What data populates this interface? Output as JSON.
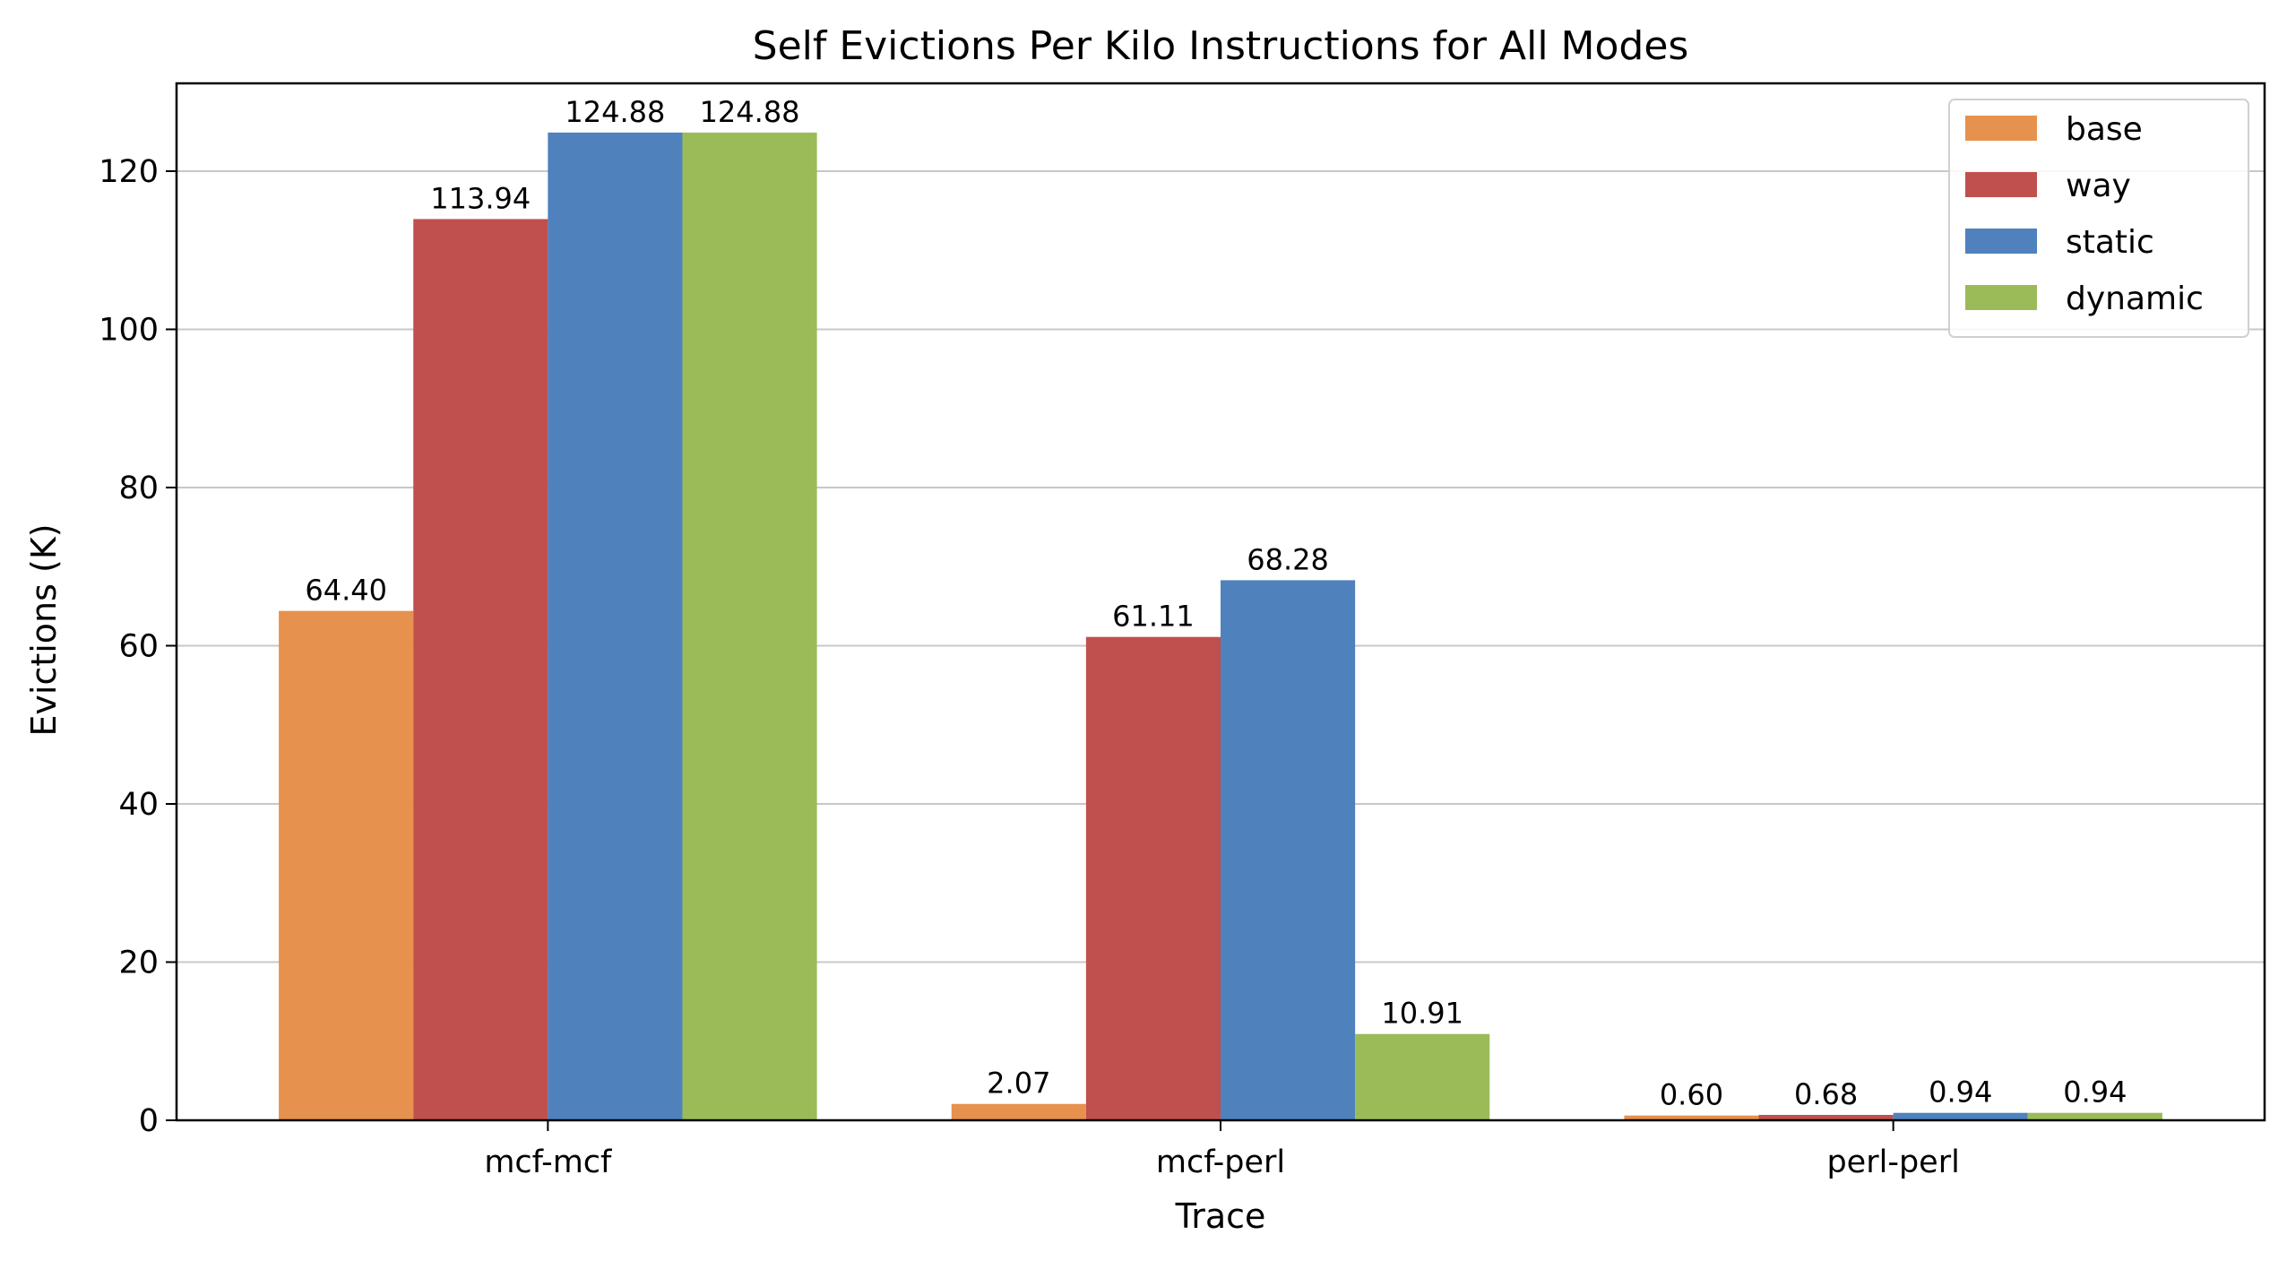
{
  "chart_data": {
    "type": "bar",
    "title": "Self Evictions Per Kilo Instructions for All Modes",
    "xlabel": "Trace",
    "ylabel": "Evictions (K)",
    "categories": [
      "mcf-mcf",
      "mcf-perl",
      "perl-perl"
    ],
    "series": [
      {
        "name": "base",
        "color": "#E6914D",
        "values": [
          64.4,
          2.07,
          0.6
        ],
        "labels": [
          "64.40",
          "2.07",
          "0.60"
        ]
      },
      {
        "name": "way",
        "color": "#C0504D",
        "values": [
          113.94,
          61.11,
          0.68
        ],
        "labels": [
          "113.94",
          "61.11",
          "0.68"
        ]
      },
      {
        "name": "static",
        "color": "#4F81BD",
        "values": [
          124.88,
          68.28,
          0.94
        ],
        "labels": [
          "124.88",
          "68.28",
          "0.94"
        ]
      },
      {
        "name": "dynamic",
        "color": "#9BBB59",
        "values": [
          124.88,
          10.91,
          0.94
        ],
        "labels": [
          "124.88",
          "10.91",
          "0.94"
        ]
      }
    ],
    "ylim": [
      0,
      131.1
    ],
    "yticks": [
      0,
      20,
      40,
      60,
      80,
      100,
      120
    ],
    "grid": "horizontal",
    "legend": "top-right"
  }
}
